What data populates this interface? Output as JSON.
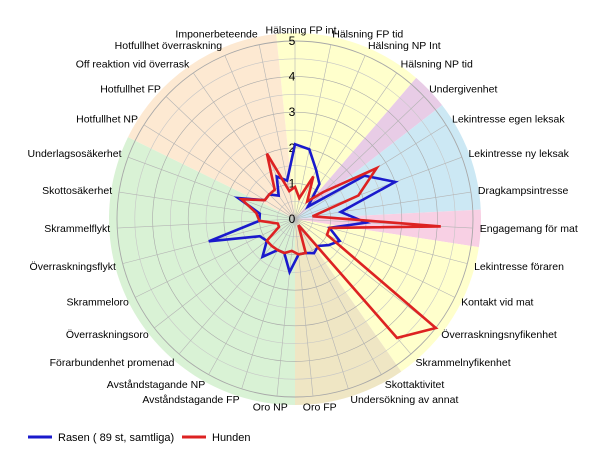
{
  "chart_data": {
    "type": "radar",
    "title": "",
    "rlim": [
      0,
      5
    ],
    "r_ticks": [
      "0",
      "1",
      "2",
      "3",
      "4",
      "5"
    ],
    "grid": true,
    "legend_position": "bottom-left",
    "categories": [
      "Hälsning FP int",
      "Hälsning FP tid",
      "Hälsning NP Int",
      "Hälsning NP tid",
      "Undergivenhet",
      "Lekintresse egen leksak",
      "Lekintresse ny leksak",
      "Dragkampsintresse",
      "Engagemang för mat",
      "Lekintresse föraren",
      "Kontakt vid mat",
      "Överraskningsnyfikenhet",
      "Skrammelnyfikenhet",
      "Skottaktivitet",
      "Undersökning av annat",
      "Oro FP",
      "Oro NP",
      "Avståndstagande FP",
      "Avståndstagande NP",
      "Förarbundenhet promenad",
      "Överraskningsoro",
      "Skrammeloro",
      "Överraskningsflykt",
      "Skrammelflykt",
      "Skottosäkerhet",
      "Underlagsosäkerhet",
      "Hotfullhet NP",
      "Hotfullhet FP",
      "Off reaktion vid överrask",
      "Hotfullhet överraskning",
      "Imponerbeteende"
    ],
    "background_sectors": [
      {
        "from": 0,
        "to": 3,
        "color": "#ffffcc"
      },
      {
        "from": 4,
        "to": 4,
        "color": "#e8cce6"
      },
      {
        "from": 5,
        "to": 7,
        "color": "#cce8f4"
      },
      {
        "from": 8,
        "to": 8,
        "color": "#f8d0e4"
      },
      {
        "from": 9,
        "to": 12,
        "color": "#ffffcc"
      },
      {
        "from": 13,
        "to": 15,
        "color": "#efe6c4"
      },
      {
        "from": 16,
        "to": 25,
        "color": "#d9f2d5"
      },
      {
        "from": 26,
        "to": 30,
        "color": "#fde9d2"
      }
    ],
    "series": [
      {
        "name": "Rasen ( 89 st, samtliga)",
        "color": "#1a1acc",
        "values": [
          2.1,
          2.0,
          1.5,
          1.2,
          0.5,
          2.3,
          3.0,
          1.3,
          2.0,
          1.0,
          1.4,
          1.2,
          1.0,
          1.1,
          1.0,
          1.0,
          1.5,
          1.0,
          1.0,
          1.4,
          1.0,
          1.1,
          2.5,
          1.0,
          1.0,
          1.7,
          1.0,
          1.0,
          0.8,
          1.3,
          1.1
        ]
      },
      {
        "name": "Hunden",
        "color": "#dd2222",
        "values": [
          0.9,
          0.6,
          1.3,
          0.6,
          1.1,
          2.7,
          1.9,
          0.5,
          4.1,
          1.0,
          1.0,
          5.0,
          4.4,
          0.2,
          1.0,
          1.0,
          0.9,
          1.0,
          1.0,
          1.0,
          1.0,
          0.5,
          0.5,
          1.0,
          1.1,
          1.6,
          1.0,
          1.0,
          1.0,
          2.0,
          0.8
        ]
      }
    ]
  }
}
